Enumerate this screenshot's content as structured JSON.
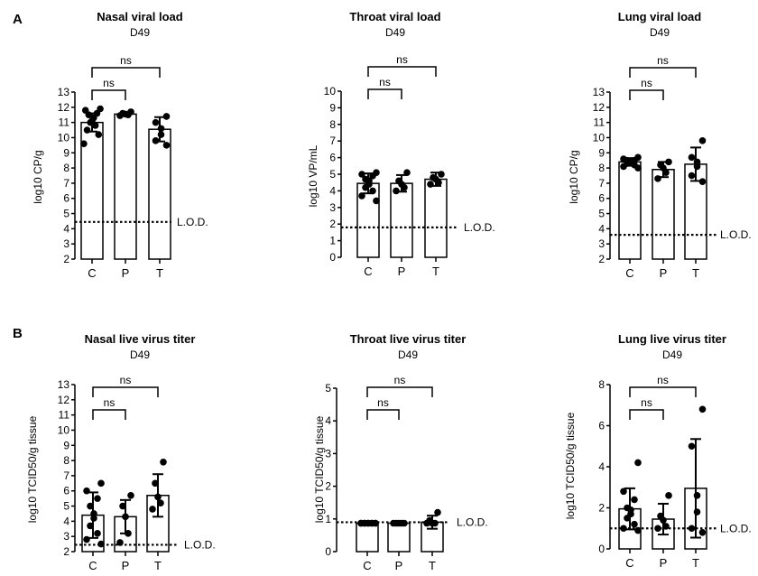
{
  "panel_labels": [
    "A",
    "B"
  ],
  "chart_data": [
    {
      "type": "bar",
      "title": "Nasal viral load",
      "subtitle": "D49",
      "ylabel": "log10 CP/g",
      "ylim": [
        2,
        13
      ],
      "yticks": [
        2,
        3,
        4,
        5,
        6,
        7,
        8,
        9,
        10,
        11,
        12,
        13
      ],
      "categories": [
        "C",
        "P",
        "T"
      ],
      "values": [
        11.0,
        11.55,
        10.55
      ],
      "errors": [
        0.6,
        0.12,
        0.8
      ],
      "points": [
        [
          11.9,
          11.8,
          11.6,
          11.5,
          11.3,
          11.1,
          11.0,
          10.8,
          10.5,
          10.2,
          9.6
        ],
        [
          11.7,
          11.6,
          11.55,
          11.5,
          11.45
        ],
        [
          11.4,
          11.0,
          10.6,
          10.2,
          9.8,
          9.5
        ]
      ],
      "lod": 4.45,
      "lod_label": "L.O.D.",
      "comparisons": [
        {
          "pair": [
            "C",
            "P"
          ],
          "label": "ns"
        },
        {
          "pair": [
            "C",
            "T"
          ],
          "label": "ns"
        }
      ]
    },
    {
      "type": "bar",
      "title": "Throat viral load",
      "subtitle": "D49",
      "ylabel": "log10 VP/mL",
      "ylim": [
        0,
        10
      ],
      "yticks": [
        0,
        1,
        2,
        3,
        4,
        5,
        6,
        7,
        8,
        9,
        10
      ],
      "categories": [
        "C",
        "P",
        "T"
      ],
      "values": [
        4.45,
        4.45,
        4.7
      ],
      "errors": [
        0.6,
        0.5,
        0.4
      ],
      "points": [
        [
          5.1,
          5.0,
          4.9,
          4.7,
          4.6,
          4.4,
          4.2,
          4.0,
          3.7,
          3.4
        ],
        [
          5.1,
          4.6,
          4.4,
          4.2,
          4.0
        ],
        [
          5.0,
          4.8,
          4.7,
          4.5,
          4.4
        ]
      ],
      "lod": 1.8,
      "lod_label": "L.O.D.",
      "comparisons": [
        {
          "pair": [
            "C",
            "P"
          ],
          "label": "ns"
        },
        {
          "pair": [
            "C",
            "T"
          ],
          "label": "ns"
        }
      ]
    },
    {
      "type": "bar",
      "title": "Lung viral load",
      "subtitle": "D49",
      "ylabel": "log10 CP/g",
      "ylim": [
        2,
        13
      ],
      "yticks": [
        2,
        3,
        4,
        5,
        6,
        7,
        8,
        9,
        10,
        11,
        12,
        13
      ],
      "categories": [
        "C",
        "P",
        "T"
      ],
      "values": [
        8.4,
        7.9,
        8.25
      ],
      "errors": [
        0.25,
        0.5,
        1.1
      ],
      "points": [
        [
          8.7,
          8.6,
          8.5,
          8.5,
          8.4,
          8.4,
          8.3,
          8.2,
          8.1,
          8.0
        ],
        [
          8.4,
          8.2,
          8.0,
          7.7,
          7.3
        ],
        [
          9.8,
          8.7,
          8.4,
          8.1,
          7.5,
          7.1
        ]
      ],
      "lod": 3.6,
      "lod_label": "L.O.D.",
      "comparisons": [
        {
          "pair": [
            "C",
            "P"
          ],
          "label": "ns"
        },
        {
          "pair": [
            "C",
            "T"
          ],
          "label": "ns"
        }
      ]
    },
    {
      "type": "bar",
      "title": "Nasal live virus titer",
      "subtitle": "D49",
      "ylabel": "log10 TCID50/g tissue",
      "ylim": [
        2,
        13
      ],
      "yticks": [
        2,
        3,
        4,
        5,
        6,
        7,
        8,
        9,
        10,
        11,
        12,
        13
      ],
      "categories": [
        "C",
        "P",
        "T"
      ],
      "values": [
        4.4,
        4.3,
        5.7
      ],
      "errors": [
        1.5,
        1.1,
        1.4
      ],
      "points": [
        [
          6.5,
          6.0,
          5.5,
          5.0,
          4.5,
          4.2,
          3.7,
          3.2,
          2.8,
          2.5
        ],
        [
          5.7,
          5.0,
          4.3,
          3.2,
          2.6
        ],
        [
          7.9,
          6.5,
          5.6,
          5.2,
          4.8
        ]
      ],
      "lod": 2.45,
      "lod_label": "L.O.D.",
      "comparisons": [
        {
          "pair": [
            "C",
            "P"
          ],
          "label": "ns"
        },
        {
          "pair": [
            "C",
            "T"
          ],
          "label": "ns"
        }
      ]
    },
    {
      "type": "bar",
      "title": "Throat live virus titer",
      "subtitle": "D49",
      "ylabel": "log10 TCID50/g tissue",
      "ylim": [
        0,
        5
      ],
      "yticks": [
        0,
        1,
        2,
        3,
        4,
        5
      ],
      "categories": [
        "C",
        "P",
        "T"
      ],
      "values": [
        0.87,
        0.87,
        0.9
      ],
      "errors": [
        0.0,
        0.0,
        0.2
      ],
      "points": [
        [
          0.87,
          0.87,
          0.87,
          0.87,
          0.87,
          0.87,
          0.87,
          0.87,
          0.87,
          0.87
        ],
        [
          0.87,
          0.87,
          0.87,
          0.87,
          0.87
        ],
        [
          1.2,
          0.95,
          0.87,
          0.87,
          0.87
        ]
      ],
      "lod": 0.9,
      "lod_label": "L.O.D.",
      "comparisons": [
        {
          "pair": [
            "C",
            "P"
          ],
          "label": "ns"
        },
        {
          "pair": [
            "C",
            "T"
          ],
          "label": "ns"
        }
      ]
    },
    {
      "type": "bar",
      "title": "Lung live virus titer",
      "subtitle": "D49",
      "ylabel": "log10 TCID50/g tissue",
      "ylim": [
        0,
        8
      ],
      "yticks": [
        0,
        2,
        4,
        6,
        8
      ],
      "categories": [
        "C",
        "P",
        "T"
      ],
      "values": [
        1.95,
        1.45,
        2.95
      ],
      "errors": [
        1.0,
        0.75,
        2.4
      ],
      "points": [
        [
          4.2,
          2.8,
          2.4,
          2.0,
          1.9,
          1.7,
          1.5,
          1.2,
          1.0,
          0.9
        ],
        [
          2.6,
          1.6,
          1.4,
          1.1,
          1.0
        ],
        [
          6.8,
          5.0,
          2.6,
          1.8,
          1.0,
          0.8
        ]
      ],
      "lod": 1.0,
      "lod_label": "L.O.D.",
      "comparisons": [
        {
          "pair": [
            "C",
            "P"
          ],
          "label": "ns"
        },
        {
          "pair": [
            "C",
            "T"
          ],
          "label": "ns"
        }
      ]
    }
  ]
}
